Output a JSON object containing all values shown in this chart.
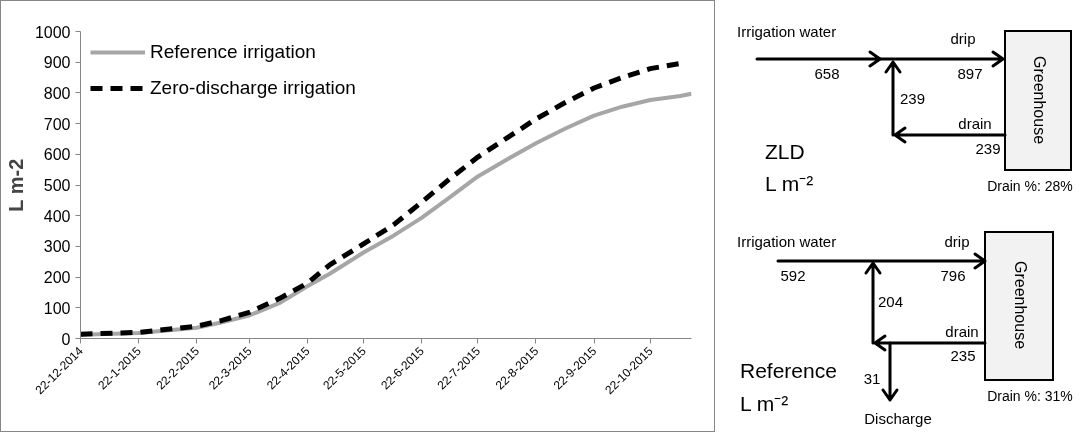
{
  "chart_data": [
    {
      "type": "line",
      "ylabel": "L m-2",
      "xlim": [
        "2014-12-22",
        "2015-11-13"
      ],
      "ylim": [
        0,
        1000
      ],
      "yticks": [
        0,
        100,
        200,
        300,
        400,
        500,
        600,
        700,
        800,
        900,
        1000
      ],
      "xticks": [
        {
          "value": "2014-12-22",
          "label": "22-12-2014"
        },
        {
          "value": "2015-01-22",
          "label": "22-1-2015"
        },
        {
          "value": "2015-02-22",
          "label": "22-2-2015"
        },
        {
          "value": "2015-03-22",
          "label": "22-3-2015"
        },
        {
          "value": "2015-04-22",
          "label": "22-4-2015"
        },
        {
          "value": "2015-05-22",
          "label": "22-5-2015"
        },
        {
          "value": "2015-06-22",
          "label": "22-6-2015"
        },
        {
          "value": "2015-07-22",
          "label": "22-7-2015"
        },
        {
          "value": "2015-08-22",
          "label": "22-8-2015"
        },
        {
          "value": "2015-09-22",
          "label": "22-9-2015"
        },
        {
          "value": "2015-10-22",
          "label": "22-10-2015"
        }
      ],
      "x": [
        "2014-12-22",
        "2015-01-22",
        "2015-02-22",
        "2015-03-07",
        "2015-03-22",
        "2015-04-07",
        "2015-04-22",
        "2015-05-04",
        "2015-05-22",
        "2015-06-07",
        "2015-06-22",
        "2015-07-07",
        "2015-07-22",
        "2015-08-07",
        "2015-08-22",
        "2015-09-07",
        "2015-09-22",
        "2015-10-07",
        "2015-10-22",
        "2015-11-07",
        "2015-11-13"
      ],
      "series": [
        {
          "name": "Reference irrigation",
          "color": "#a6a6a6",
          "line_style": "solid",
          "values": [
            12,
            18,
            35,
            52,
            75,
            115,
            170,
            211,
            280,
            335,
            393,
            460,
            528,
            585,
            636,
            685,
            726,
            755,
            777,
            790,
            797
          ]
        },
        {
          "name": "Zero-discharge irrigation",
          "color": "#000000",
          "line_style": "dashed",
          "values": [
            14,
            20,
            40,
            58,
            85,
            130,
            180,
            240,
            308,
            370,
            444,
            520,
            591,
            655,
            715,
            770,
            816,
            850,
            879,
            896,
            null
          ]
        }
      ],
      "legend": "top left",
      "grid": false,
      "marker": "none"
    },
    {
      "type": "other",
      "annotations": [
        "Irrigation water",
        "658",
        "drip",
        "897",
        "239",
        "drain",
        "239",
        "Greenhouse",
        "ZLD",
        "L m⁻²",
        "Drain %: 28%",
        "Irrigation water",
        "592",
        "drip",
        "796",
        "204",
        "drain",
        "235",
        "Greenhouse",
        "31",
        "Discharge",
        "Reference",
        "L m⁻²",
        "Drain %: 31%"
      ]
    }
  ]
}
